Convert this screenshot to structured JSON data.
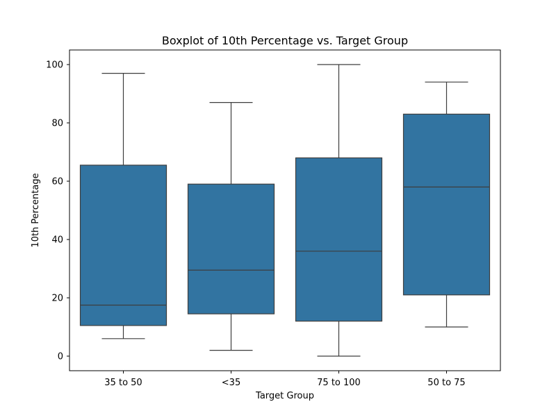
{
  "chart_data": {
    "type": "boxplot",
    "title": "Boxplot of 10th Percentage vs. Target Group",
    "xlabel": "Target Group",
    "ylabel": "10th Percentage",
    "ylim": [
      -5,
      105
    ],
    "yticks": [
      0,
      20,
      40,
      60,
      80,
      100
    ],
    "categories": [
      "35 to 50",
      "<35",
      "75 to 100",
      "50 to 75"
    ],
    "boxes": [
      {
        "category": "35 to 50",
        "whisker_low": 6,
        "q1": 10.5,
        "median": 17.5,
        "q3": 65.5,
        "whisker_high": 97
      },
      {
        "category": "<35",
        "whisker_low": 2,
        "q1": 14.5,
        "median": 29.5,
        "q3": 59,
        "whisker_high": 87
      },
      {
        "category": "75 to 100",
        "whisker_low": 0,
        "q1": 12,
        "median": 36,
        "q3": 68,
        "whisker_high": 100
      },
      {
        "category": "50 to 75",
        "whisker_low": 10,
        "q1": 21,
        "median": 58,
        "q3": 83,
        "whisker_high": 94
      }
    ],
    "box_color": "#3274a1",
    "line_color": "#3d3d3d",
    "grid": false,
    "legend": "none"
  }
}
